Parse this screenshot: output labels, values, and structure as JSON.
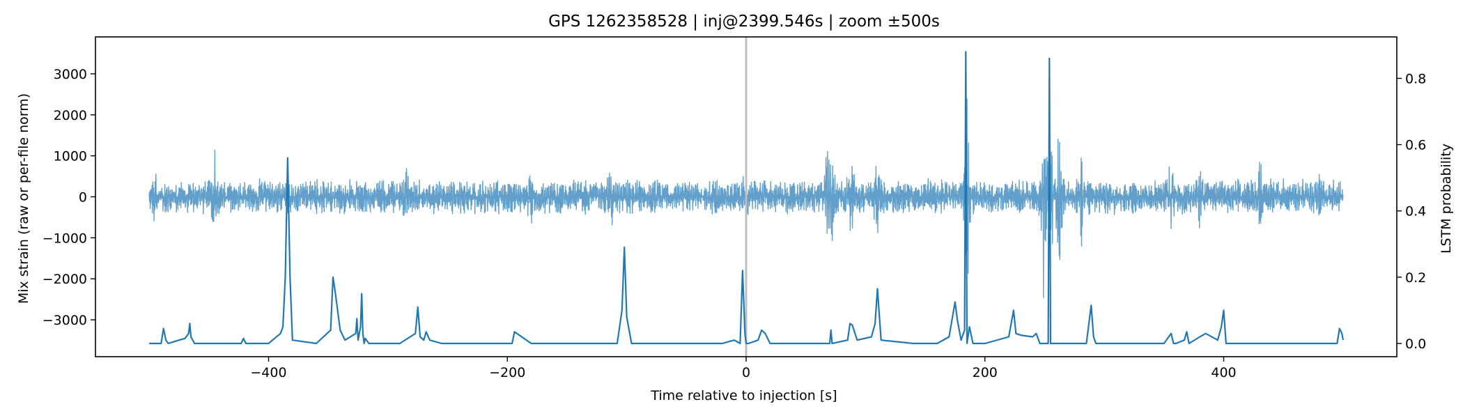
{
  "chart_data": {
    "type": "line",
    "title": "GPS 1262358528 | inj@2399.546s | zoom ±500s",
    "xlabel": "Time relative to injection [s]",
    "ylabel_left": "Mix strain (raw or per-file norm)",
    "ylabel_right": "LSTM probability",
    "xlim": [
      -545,
      545
    ],
    "ylim_left": [
      -3900,
      3900
    ],
    "ylim_right": [
      -0.04,
      0.925
    ],
    "xticks": [
      -400,
      -200,
      0,
      200,
      400
    ],
    "xtick_labels": [
      "−400",
      "−200",
      "0",
      "200",
      "400"
    ],
    "yticks_left": [
      -3000,
      -2000,
      -1000,
      0,
      1000,
      2000,
      3000
    ],
    "ytick_labels_left": [
      "−3000",
      "−2000",
      "−1000",
      "0",
      "1000",
      "2000",
      "3000"
    ],
    "yticks_right": [
      0.0,
      0.2,
      0.4,
      0.6,
      0.8
    ],
    "ytick_labels_right": [
      "0.0",
      "0.2",
      "0.4",
      "0.6",
      "0.8"
    ],
    "injection_marker": {
      "x": 0,
      "color": "#bfbfbf"
    },
    "grid": false,
    "series": [
      {
        "axis": "left",
        "color": "#62a0cb",
        "x_range": [
          -500,
          500
        ],
        "baseline_amplitude": 520,
        "bursts": [
          {
            "x": -495,
            "amp": 900
          },
          {
            "x": -445,
            "amp": 1450
          },
          {
            "x": -385,
            "amp": 800
          },
          {
            "x": -285,
            "amp": 1300
          },
          {
            "x": -180,
            "amp": 850
          },
          {
            "x": -113,
            "amp": 1100
          },
          {
            "x": 0,
            "amp": 1000
          },
          {
            "x": 68,
            "amp": 1900
          },
          {
            "x": 72,
            "amp": 1600
          },
          {
            "x": 88,
            "amp": 1400
          },
          {
            "x": 110,
            "amp": 1300
          },
          {
            "x": 185,
            "amp": 3500
          },
          {
            "x": 250,
            "amp": 3450
          },
          {
            "x": 255,
            "amp": 3200
          },
          {
            "x": 262,
            "amp": 2200
          },
          {
            "x": 280,
            "amp": 2100
          },
          {
            "x": 355,
            "amp": 1200
          },
          {
            "x": 380,
            "amp": 1100
          },
          {
            "x": 430,
            "amp": 1300
          },
          {
            "x": 480,
            "amp": 1100
          }
        ]
      },
      {
        "axis": "right",
        "color": "#1f77b4",
        "x": [
          -500,
          -495,
          -490,
          -488,
          -486,
          -484,
          -475,
          -470,
          -467,
          -466,
          -465,
          -462,
          -455,
          -440,
          -423,
          -421,
          -419,
          -400,
          -390,
          -388,
          -386,
          -384,
          -382,
          -380,
          -360,
          -348,
          -346,
          -344,
          -340,
          -336,
          -327,
          -326,
          -325,
          -323,
          -322,
          -321,
          -320,
          -319,
          -316,
          -312,
          -290,
          -277,
          -275,
          -273,
          -270,
          -268,
          -265,
          -255,
          -225,
          -196,
          -194,
          -180,
          -175,
          -130,
          -108,
          -104,
          -102,
          -100,
          -96,
          -30,
          -20,
          -10,
          -5,
          -3,
          -1,
          0,
          2,
          10,
          13,
          16,
          20,
          40,
          70,
          71,
          72,
          85,
          87,
          89,
          93,
          105,
          108,
          110,
          113,
          140,
          160,
          170,
          175,
          177,
          180,
          183,
          184,
          185,
          187,
          190,
          200,
          220,
          224,
          226,
          230,
          240,
          243,
          246,
          253,
          254,
          255,
          256,
          257,
          285,
          289,
          291,
          293,
          350,
          356,
          358,
          360,
          367,
          369,
          371,
          380,
          385,
          395,
          398,
          400,
          402,
          420,
          480,
          495,
          497,
          499,
          500
        ],
        "y": [
          0.0,
          0.0,
          0.0,
          0.045,
          0.01,
          0.0,
          0.01,
          0.015,
          0.03,
          0.06,
          0.02,
          0.0,
          0.0,
          0.0,
          0.0,
          0.015,
          0.0,
          0.0,
          0.03,
          0.05,
          0.2,
          0.56,
          0.2,
          0.01,
          0.0,
          0.04,
          0.2,
          0.15,
          0.04,
          0.01,
          0.03,
          0.075,
          0.01,
          0.05,
          0.15,
          0.03,
          0.0,
          0.015,
          0.0,
          0.0,
          0.0,
          0.03,
          0.11,
          0.02,
          0.01,
          0.035,
          0.01,
          0.0,
          0.0,
          0.0,
          0.035,
          0.0,
          0.0,
          0.0,
          0.0,
          0.1,
          0.29,
          0.08,
          0.0,
          0.0,
          0.0,
          0.01,
          0.0,
          0.22,
          0.03,
          0.0,
          0.0,
          0.01,
          0.04,
          0.03,
          0.0,
          0.0,
          0.0,
          0.04,
          0.0,
          0.01,
          0.06,
          0.055,
          0.01,
          0.02,
          0.06,
          0.165,
          0.01,
          0.0,
          0.0,
          0.02,
          0.125,
          0.07,
          0.01,
          0.04,
          0.88,
          0.0,
          0.05,
          0.0,
          0.0,
          0.02,
          0.1,
          0.03,
          0.025,
          0.02,
          0.03,
          0.0,
          0.0,
          0.86,
          0.0,
          0.0,
          0.0,
          0.0,
          0.115,
          0.02,
          0.0,
          0.0,
          0.03,
          0.0,
          0.0,
          0.01,
          0.035,
          0.0,
          0.02,
          0.03,
          0.01,
          0.05,
          0.1,
          0.0,
          0.0,
          0.0,
          0.0,
          0.045,
          0.03,
          0.01
        ]
      }
    ]
  }
}
